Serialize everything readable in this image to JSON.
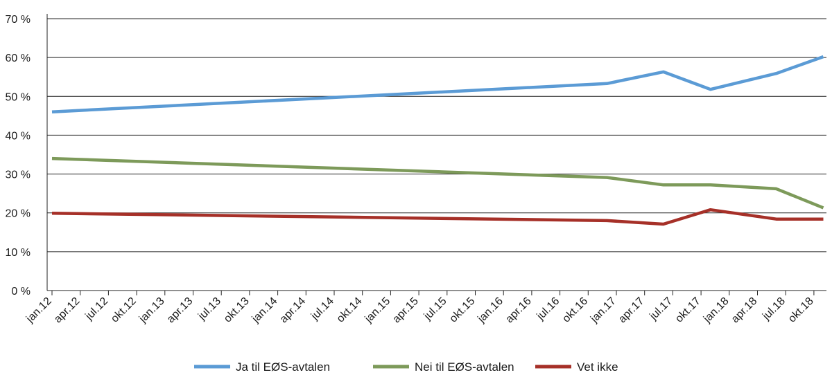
{
  "chart_data": {
    "type": "line",
    "title": "",
    "xlabel": "",
    "ylabel": "",
    "ylim": [
      0,
      70
    ],
    "y_ticks": [
      "0 %",
      "10 %",
      "20 %",
      "30 %",
      "40 %",
      "50 %",
      "60 %",
      "70 %"
    ],
    "y_tick_values": [
      0,
      10,
      20,
      30,
      40,
      50,
      60,
      70
    ],
    "grid": "horizontal",
    "legend_position": "bottom",
    "categories": [
      "jan.12",
      "apr.12",
      "jul.12",
      "okt.12",
      "jan.13",
      "apr.13",
      "jul.13",
      "okt.13",
      "jan.14",
      "apr.14",
      "jul.14",
      "okt.14",
      "jan.15",
      "apr.15",
      "jul.15",
      "okt.15",
      "jan.16",
      "apr.16",
      "jul.16",
      "okt.16",
      "jan.17",
      "apr.17",
      "jul.17",
      "okt.17",
      "jan.18",
      "apr.18",
      "jul.18",
      "okt.18"
    ],
    "series": [
      {
        "name": "Ja til EØS-avtalen",
        "color": "#5b9bd5",
        "points": [
          {
            "x": "jan.12",
            "y": 46
          },
          {
            "x": "des.16",
            "y": 53.3
          },
          {
            "x": "jun.17",
            "y": 56.3
          },
          {
            "x": "nov.17",
            "y": 51.8
          },
          {
            "x": "jun.18",
            "y": 55.9
          },
          {
            "x": "nov.18",
            "y": 60.2
          }
        ]
      },
      {
        "name": "Nei til EØS-avtalen",
        "color": "#7d9a5a",
        "points": [
          {
            "x": "jan.12",
            "y": 34
          },
          {
            "x": "des.16",
            "y": 29.1
          },
          {
            "x": "jun.17",
            "y": 27.2
          },
          {
            "x": "nov.17",
            "y": 27.2
          },
          {
            "x": "jun.18",
            "y": 26.2
          },
          {
            "x": "nov.18",
            "y": 21.3
          }
        ]
      },
      {
        "name": "Vet ikke",
        "color": "#a63028",
        "points": [
          {
            "x": "jan.12",
            "y": 19.9
          },
          {
            "x": "des.16",
            "y": 18
          },
          {
            "x": "jun.17",
            "y": 17.1
          },
          {
            "x": "nov.17",
            "y": 20.8
          },
          {
            "x": "jun.18",
            "y": 18.4
          },
          {
            "x": "nov.18",
            "y": 18.4
          }
        ]
      }
    ]
  }
}
